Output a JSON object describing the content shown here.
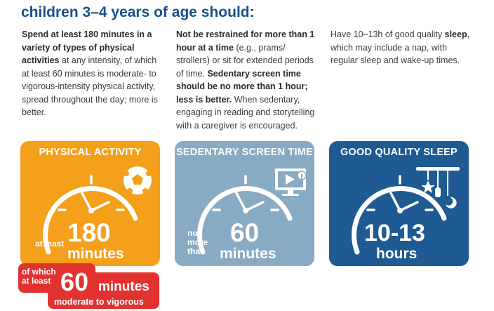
{
  "heading": "children 3–4 years of age should:",
  "columns": [
    {
      "p1_bold": "Spend at least 180 minutes in a variety of types of physical activities",
      "p1_rest": " at any intensity, of which at least 60 minutes is moderate- to vigorous-intensity physical activity, spread throughout the day; more is better."
    },
    {
      "p1_bold": "Not be restrained for more than 1 hour at a time",
      "p1_rest": " (e.g., prams/ strollers) or sit for extended periods of time. ",
      "p2_bold": "Sedentary screen time should be no more than 1 hour; less is better.",
      "p2_rest": " When sedentary, engaging in reading and storytelling with a caregiver is encouraged."
    },
    {
      "p1_pre": "Have 10–13h of good quality ",
      "p1_bold": "sleep",
      "p1_rest": ", which may include a nap, with regular sleep and wake-up times."
    }
  ],
  "cards": {
    "physical": {
      "title": "PHYSICAL ACTIVITY",
      "prefix": "at least",
      "value": "180",
      "unit": "minutes",
      "icon": "soccer-ball-icon",
      "color": "#f5a01a"
    },
    "screen": {
      "title": "SEDENTARY SCREEN TIME",
      "prefix_line1": "no",
      "prefix_line2": "more",
      "prefix_line3": "than",
      "value": "60",
      "unit": "minutes",
      "icon": "screen-touch-icon",
      "color": "#88aac3"
    },
    "sleep": {
      "title": "GOOD QUALITY SLEEP",
      "value": "10-13",
      "unit": "hours",
      "icon": "crib-mobile-icon",
      "color": "#1f5a93"
    }
  },
  "callout": {
    "line1": "of which",
    "line2": "at least",
    "value": "60",
    "unit": "minutes",
    "caption": "moderate to vigorous",
    "color": "#e2322f"
  }
}
